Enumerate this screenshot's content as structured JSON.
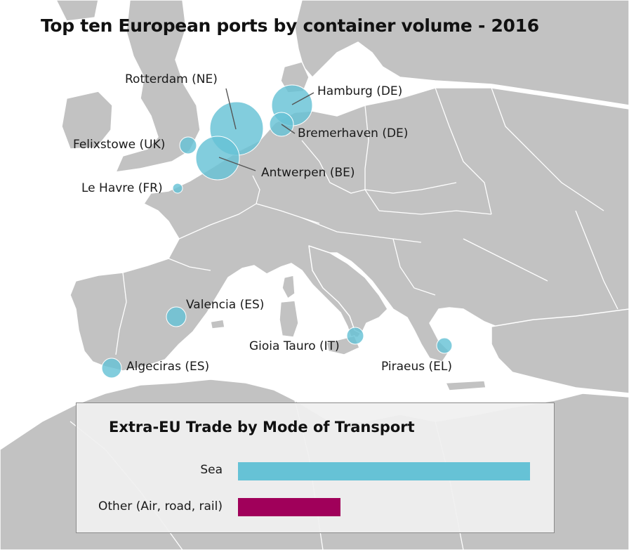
{
  "title": "Top ten European ports by container volume - 2016",
  "colors": {
    "sea": "#66c2d6",
    "land": "#c2c2c2",
    "water": "#ffffff",
    "border": "#ffffff",
    "port_bubble": "#66c2d6",
    "other_bar": "#a0005a"
  },
  "ports": [
    {
      "name": "Rotterdam (NE)"
    },
    {
      "name": "Hamburg (DE)"
    },
    {
      "name": "Bremerhaven (DE)"
    },
    {
      "name": "Felixstowe (UK)"
    },
    {
      "name": "Antwerpen (BE)"
    },
    {
      "name": "Le Havre (FR)"
    },
    {
      "name": "Valencia (ES)"
    },
    {
      "name": "Gioia Tauro (IT)"
    },
    {
      "name": "Algeciras (ES)"
    },
    {
      "name": "Piraeus (EL)"
    }
  ],
  "chart_data": {
    "type": "bar",
    "title": "Extra-EU Trade by Mode of Transport",
    "categories": [
      "Sea",
      "Other (Air, road, rail)"
    ],
    "values": [
      1.0,
      0.35
    ],
    "colors": [
      "#66c2d6",
      "#a0005a"
    ]
  }
}
